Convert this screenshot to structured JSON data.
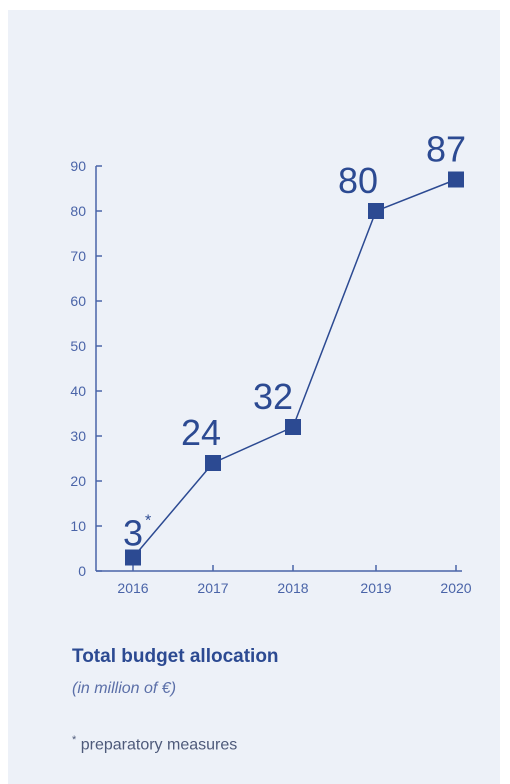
{
  "colors": {
    "accent": "#2c4a92",
    "axis": "#4a64a8",
    "background": "#edf1f8"
  },
  "chart_data": {
    "type": "line",
    "x": [
      "2016",
      "2017",
      "2018",
      "2019",
      "2020"
    ],
    "values": [
      3,
      24,
      32,
      80,
      87
    ],
    "data_labels": [
      "3",
      "24",
      "32",
      "80",
      "87"
    ],
    "data_label_marks": [
      "*",
      "",
      "",
      "",
      ""
    ],
    "yticks": [
      0,
      10,
      20,
      30,
      40,
      50,
      60,
      70,
      80,
      90
    ],
    "ylim": [
      0,
      90
    ],
    "grid": false,
    "legend": "none",
    "marker": "square"
  },
  "caption": {
    "title": "Total budget allocation",
    "subtitle": "(in million of €)",
    "footnote_mark": "*",
    "footnote": "preparatory measures"
  }
}
